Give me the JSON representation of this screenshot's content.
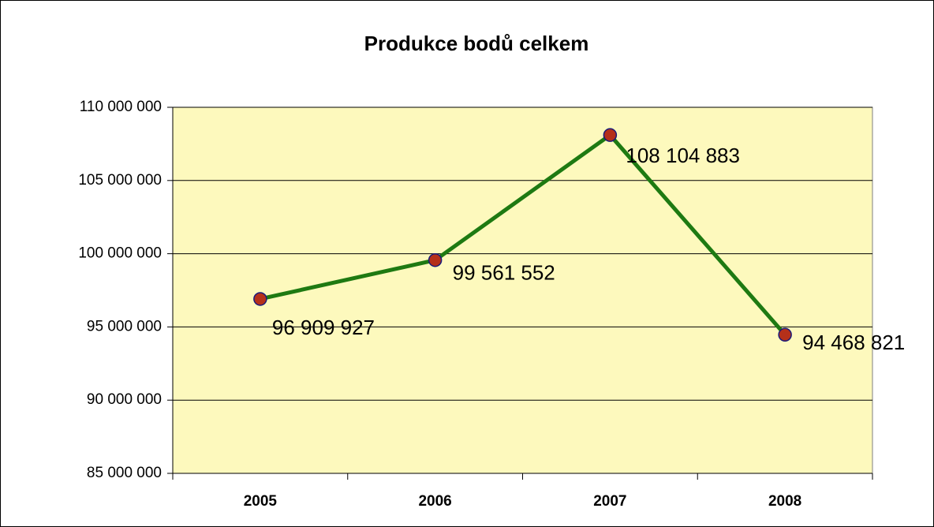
{
  "chart_data": {
    "type": "line",
    "title": "Produkce bodů celkem",
    "categories": [
      "2005",
      "2006",
      "2007",
      "2008"
    ],
    "series": [
      {
        "name": "Produkce bodů",
        "color": "#1e7a12",
        "values": [
          96909927,
          99561552,
          108104883,
          94468821
        ],
        "value_labels": [
          "96 909 927",
          "99 561 552",
          "108 104 883",
          "94 468 821"
        ]
      }
    ],
    "ylim": [
      85000000,
      110000000
    ],
    "yticks": [
      {
        "value": 85000000,
        "label": "85 000 000"
      },
      {
        "value": 90000000,
        "label": "90 000 000"
      },
      {
        "value": 95000000,
        "label": "95 000 000"
      },
      {
        "value": 100000000,
        "label": "100 000 000"
      },
      {
        "value": 105000000,
        "label": "105 000 000"
      },
      {
        "value": 110000000,
        "label": "110 000 000"
      }
    ],
    "grid": true,
    "plot_background": "#fdf9bd",
    "marker_color": "#b5301a"
  }
}
